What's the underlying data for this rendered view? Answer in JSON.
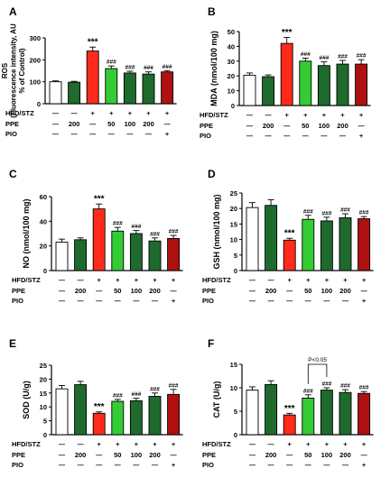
{
  "colors": {
    "white": "#ffffff",
    "dark_green": "#1e6b2d",
    "red": "#ff2a1a",
    "light_green": "#33cc33",
    "dark_red": "#b01010",
    "axis": "#000000"
  },
  "bar_colors": [
    "white",
    "dark_green",
    "red",
    "light_green",
    "dark_green",
    "dark_green",
    "dark_red"
  ],
  "group_rows": [
    {
      "label": "HFD/STZ",
      "values": [
        "—",
        "—",
        "+",
        "+",
        "+",
        "+",
        "+"
      ]
    },
    {
      "label": "PPE",
      "values": [
        "—",
        "200",
        "—",
        "50",
        "100",
        "200",
        "—"
      ]
    },
    {
      "label": "PIO",
      "values": [
        "—",
        "—",
        "—",
        "—",
        "—",
        "—",
        "+"
      ]
    }
  ],
  "chart_data": [
    {
      "type": "bar",
      "panel_label": "A",
      "ylabel_lines": [
        "ROS",
        "(Fluorescence intensity, AU",
        "% of Control)"
      ],
      "ylim": [
        0,
        300
      ],
      "yticks": [
        0,
        100,
        200,
        300
      ],
      "values": [
        100,
        98,
        240,
        160,
        140,
        135,
        145
      ],
      "errors": [
        4,
        4,
        18,
        12,
        8,
        10,
        6
      ],
      "annotations": [
        "",
        "",
        "***",
        "###",
        "###",
        "###",
        "###"
      ],
      "bracket": null
    },
    {
      "type": "bar",
      "panel_label": "B",
      "ylabel_lines": [
        "MDA (nmol/100 mg)"
      ],
      "ylim": [
        0,
        50
      ],
      "yticks": [
        0,
        10,
        20,
        30,
        40,
        50
      ],
      "values": [
        20.5,
        19.5,
        42,
        30,
        27,
        28,
        28
      ],
      "errors": [
        1.5,
        1.2,
        4,
        2,
        2.5,
        2.5,
        3
      ],
      "annotations": [
        "",
        "",
        "***",
        "###",
        "###",
        "###",
        "###"
      ],
      "bracket": null
    },
    {
      "type": "bar",
      "panel_label": "C",
      "ylabel_lines": [
        "NO (nmol/100 mg)"
      ],
      "ylim": [
        0,
        60
      ],
      "yticks": [
        0,
        20,
        40,
        60
      ],
      "values": [
        23,
        25,
        50,
        32,
        30,
        24,
        26
      ],
      "errors": [
        2.5,
        1.5,
        4,
        3,
        2.5,
        2.5,
        2.5
      ],
      "annotations": [
        "",
        "",
        "***",
        "###",
        "###",
        "###",
        "###"
      ],
      "bracket": null
    },
    {
      "type": "bar",
      "panel_label": "D",
      "ylabel_lines": [
        "GSH (nmol/100 mg)"
      ],
      "ylim": [
        0,
        25
      ],
      "yticks": [
        0,
        5,
        10,
        15,
        20,
        25
      ],
      "values": [
        20.3,
        21,
        9.8,
        16.5,
        16,
        17,
        16.7
      ],
      "errors": [
        1.6,
        1.8,
        0.6,
        1.3,
        1.2,
        1.3,
        0.7
      ],
      "annotations": [
        "",
        "",
        "***",
        "###",
        "###",
        "###",
        "###"
      ],
      "bracket": null
    },
    {
      "type": "bar",
      "panel_label": "E",
      "ylabel_lines": [
        "SOD (U/g)"
      ],
      "ylim": [
        0,
        25
      ],
      "yticks": [
        0,
        5,
        10,
        15,
        20,
        25
      ],
      "values": [
        16.5,
        18,
        7.7,
        12,
        12.2,
        13.8,
        14.5
      ],
      "errors": [
        1.2,
        1.2,
        0.5,
        0.7,
        0.9,
        1.2,
        1.8
      ],
      "annotations": [
        "",
        "",
        "***",
        "###",
        "###",
        "###",
        "###"
      ],
      "bracket": null
    },
    {
      "type": "bar",
      "panel_label": "F",
      "ylabel_lines": [
        "CAT (U/g)"
      ],
      "ylim": [
        0,
        15
      ],
      "yticks": [
        0,
        5,
        10,
        15
      ],
      "values": [
        9.5,
        10.7,
        4.2,
        7.8,
        9.5,
        9,
        8.8
      ],
      "errors": [
        0.7,
        0.8,
        0.35,
        0.7,
        0.5,
        0.6,
        0.4
      ],
      "annotations": [
        "",
        "",
        "***",
        "###",
        "###",
        "###",
        "###"
      ],
      "bracket": {
        "from": 3,
        "to": 4,
        "label": "P<0.05"
      }
    }
  ]
}
